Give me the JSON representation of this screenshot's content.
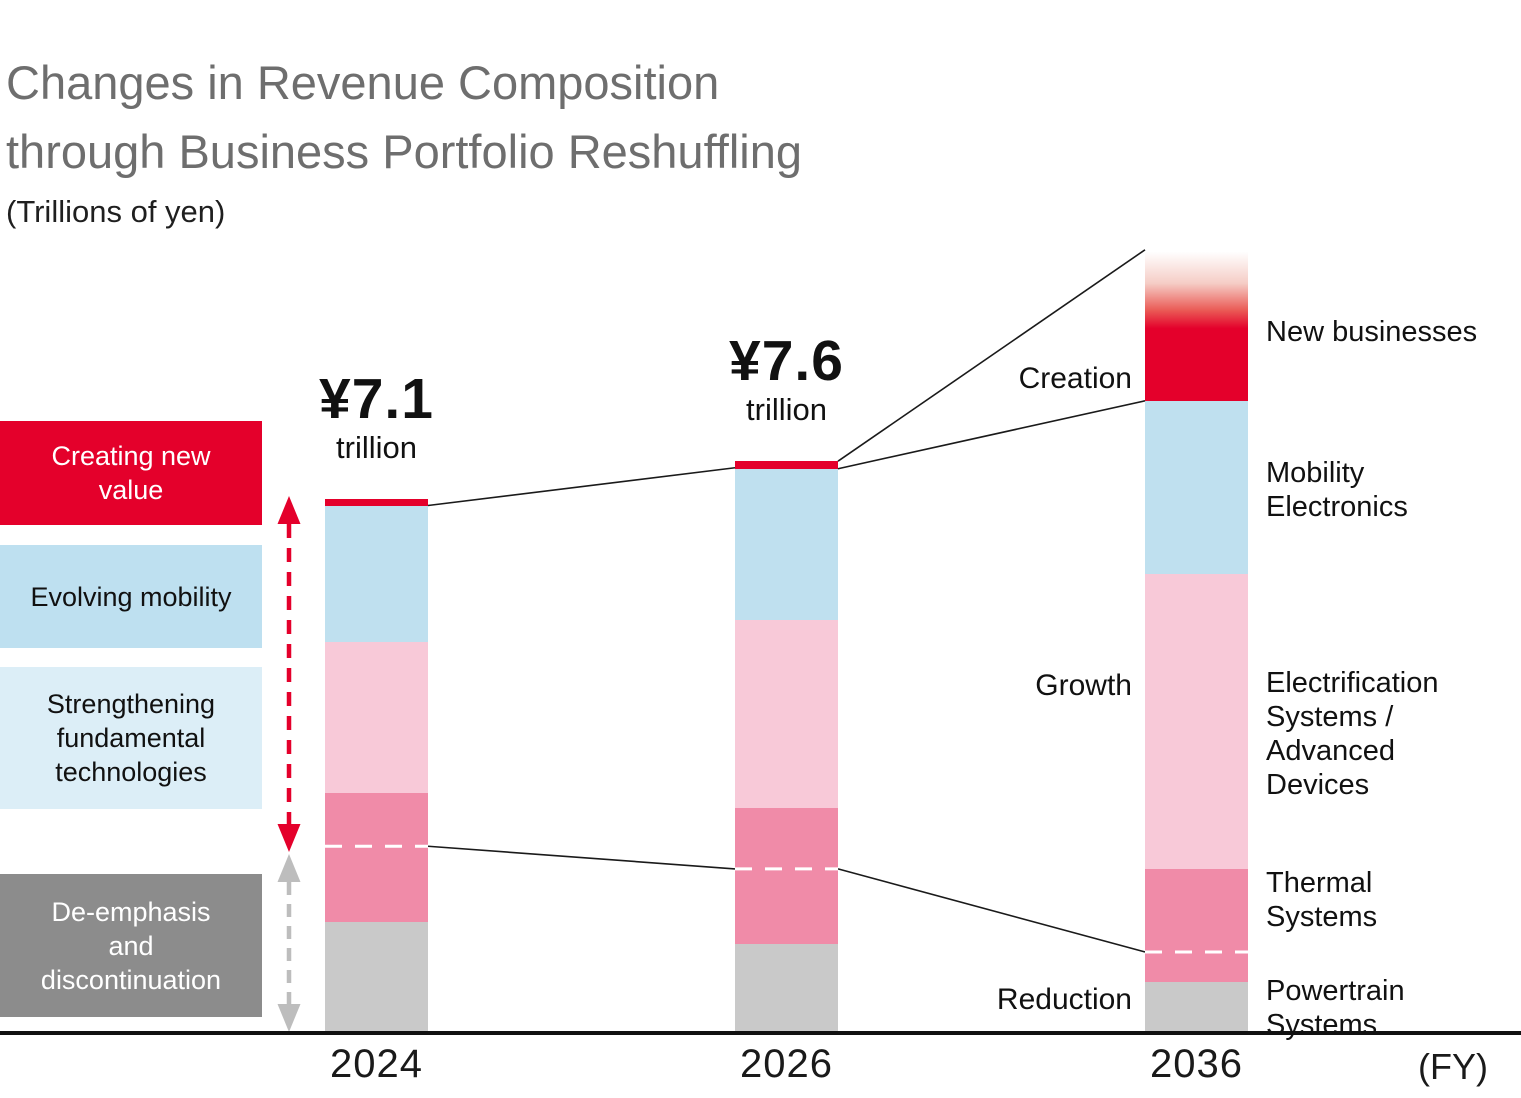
{
  "title": {
    "line1": "Changes in Revenue Composition",
    "line2": "through Business Portfolio Reshuffling",
    "unit_note": "(Trillions of yen)"
  },
  "left_legend": [
    {
      "label": "Creating new value",
      "color": "#E4002B",
      "text_color": "#FFFFFF"
    },
    {
      "label": "Evolving mobility",
      "color": "#BEE0F0",
      "text_color": "#111111"
    },
    {
      "label": "Strengthening fundamental technologies",
      "color": "#DCEEF7",
      "text_color": "#111111"
    },
    {
      "label": "De-emphasis and discontinuation",
      "color": "#8C8C8C",
      "text_color": "#FFFFFF"
    }
  ],
  "flow_labels": {
    "creation": "Creation",
    "growth": "Growth",
    "reduction": "Reduction"
  },
  "chart_data": {
    "type": "bar",
    "stacked": true,
    "unit": "trillions of yen",
    "categories": [
      "2024",
      "2026",
      "2036"
    ],
    "x_axis_unit": "(FY)",
    "totals": [
      {
        "value": 7.1,
        "value_label": "¥7.1",
        "unit_label": "trillion"
      },
      {
        "value": 7.6,
        "value_label": "¥7.6",
        "unit_label": "trillion"
      },
      null
    ],
    "series": [
      {
        "name": "New businesses",
        "color": "#E4002B",
        "values": [
          0.1,
          0.1,
          2.0
        ]
      },
      {
        "name": "Mobility Electronics",
        "color": "#BFE0EF",
        "values": [
          1.8,
          2.0,
          2.3
        ]
      },
      {
        "name": "Electrification Systems / Advanced Devices",
        "color": "#F8C9D8",
        "values": [
          2.0,
          2.5,
          3.9
        ]
      },
      {
        "name": "Thermal Systems",
        "color": "#F08BA8",
        "values": [
          1.7,
          1.8,
          1.5
        ]
      },
      {
        "name": "Powertrain Systems",
        "color": "#C9C9C9",
        "values": [
          1.5,
          1.2,
          0.7
        ]
      }
    ],
    "de_emphasis_boundary_from_bottom": [
      2.5,
      2.2,
      1.1
    ],
    "notes": "Segment values estimated from bar heights; only totals 7.1 and 7.6 are labeled on screen. 2036 'New businesses' segment fades from white (top) to solid red."
  },
  "colors": {
    "red": "#E4002B",
    "light_blue": "#BFE0EF",
    "pale_blue_box": "#DCEEF7",
    "light_pink": "#F8C9D8",
    "dark_pink": "#F08BA8",
    "segment_gray": "#C9C9C9",
    "box_gray": "#8C8C8C",
    "title_gray": "#6E6E6E",
    "connector_black": "#1A1A1A",
    "gray_arrow": "#BDBDBD",
    "dashed_boundary": "#FFFFFF"
  }
}
